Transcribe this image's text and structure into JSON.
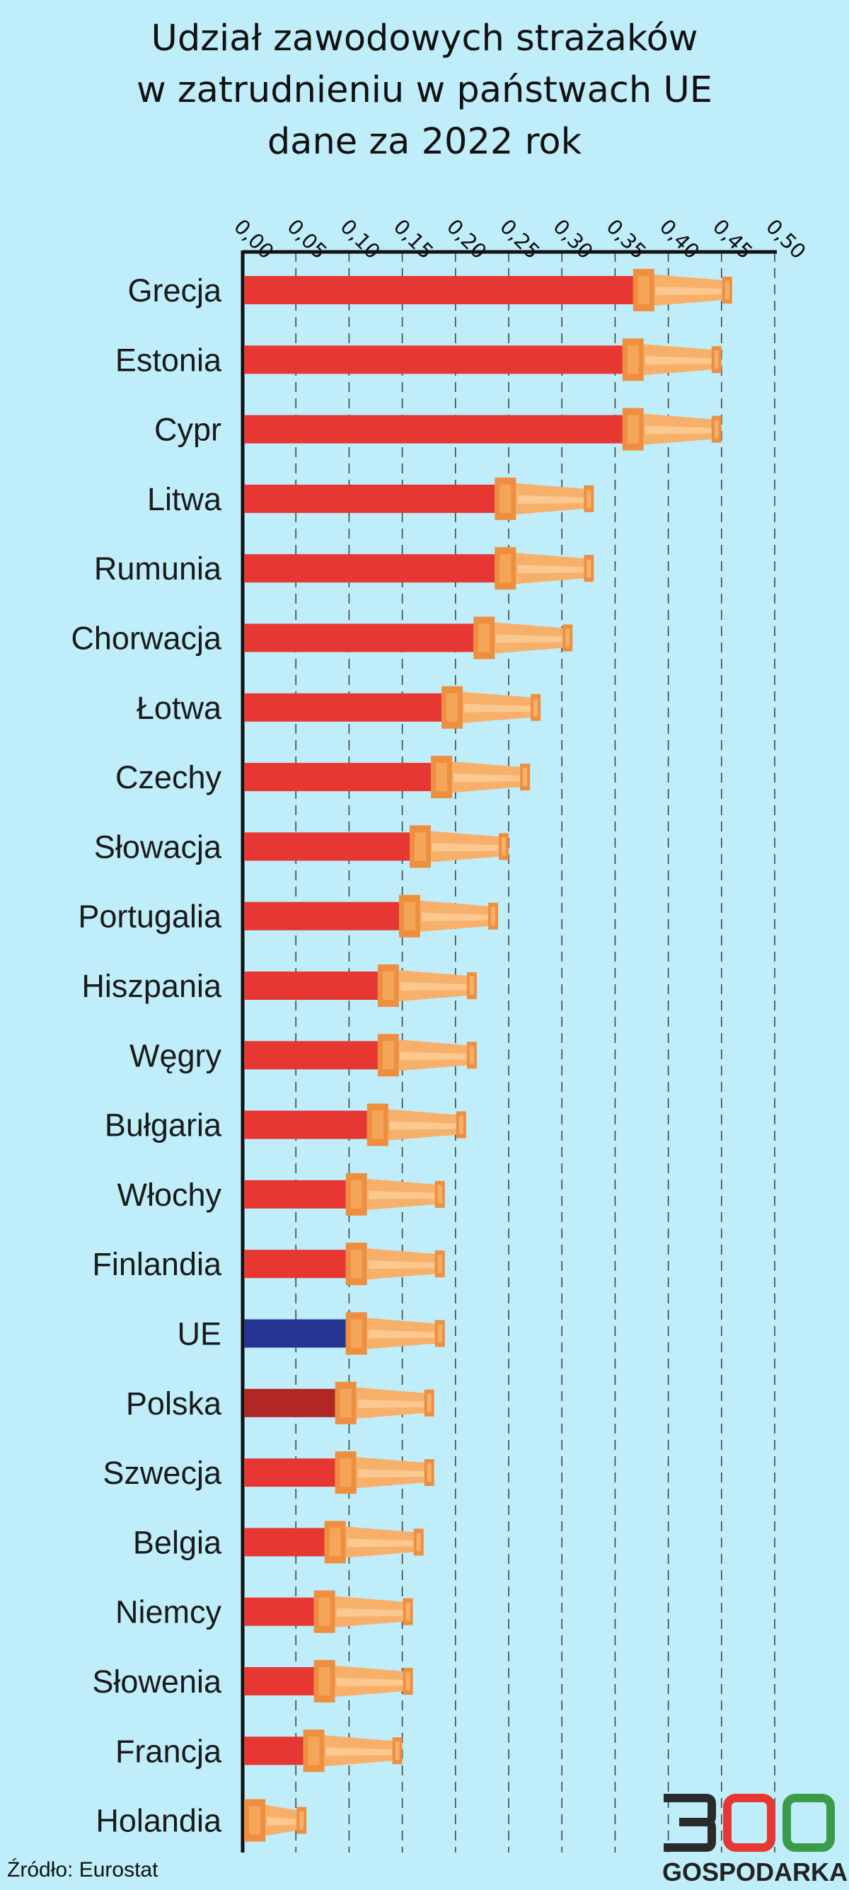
{
  "chart_data": {
    "type": "bar",
    "title_lines": [
      "Udział zawodowych strażaków",
      "w zatrudnieniu w państwach UE",
      "dane za 2022 rok"
    ],
    "categories": [
      "Grecja",
      "Estonia",
      "Cypr",
      "Litwa",
      "Rumunia",
      "Chorwacja",
      "Łotwa",
      "Czechy",
      "Słowacja",
      "Portugalia",
      "Hiszpania",
      "Węgry",
      "Bułgaria",
      "Włochy",
      "Finlandia",
      "UE",
      "Polska",
      "Szwecja",
      "Belgia",
      "Niemcy",
      "Słowenia",
      "Francja",
      "Holandia"
    ],
    "values": [
      0.46,
      0.45,
      0.45,
      0.33,
      0.33,
      0.31,
      0.28,
      0.27,
      0.25,
      0.24,
      0.22,
      0.22,
      0.21,
      0.19,
      0.19,
      0.19,
      0.18,
      0.18,
      0.17,
      0.16,
      0.16,
      0.15,
      0.06
    ],
    "highlight": {
      "UE": "#263591",
      "Polska": "#b22723"
    },
    "bar_color": "#e63732",
    "nozzle_color": "#f5a55a",
    "x_ticks": [
      "0,00",
      "0,05",
      "0,10",
      "0,15",
      "0,20",
      "0,25",
      "0,30",
      "0,35",
      "0,40",
      "0,45",
      "0,50"
    ],
    "xlim": [
      0,
      0.5
    ],
    "grid": "dashed vertical"
  },
  "footer": {
    "source": "Źródło: Eurostat",
    "logo_digits": "300",
    "logo_text": "GOSPODARKA",
    "logo_colors": {
      "three": "#2a2a2a",
      "zero1": "#e63732",
      "zero2": "#3a9b48"
    }
  }
}
